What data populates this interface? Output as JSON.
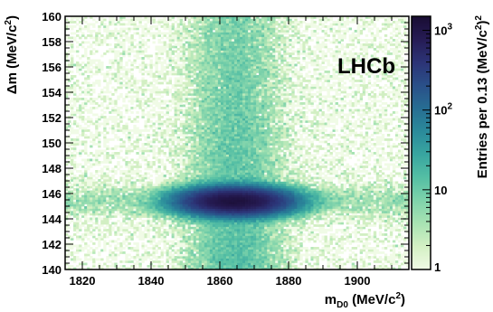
{
  "chart_data": {
    "type": "heatmap",
    "title": "",
    "x_axis": {
      "label_main": "m",
      "label_sub": "D0",
      "label_unit": " (MeV/c",
      "label_sup": "2",
      "label_close": ")",
      "range": [
        1815,
        1915
      ],
      "ticks": [
        1820,
        1840,
        1860,
        1880,
        1900
      ],
      "tick_labels": [
        "1820",
        "1840",
        "1860",
        "1880",
        "1900"
      ]
    },
    "y_axis": {
      "label_prefix": "Δm (MeV/c",
      "label_sup": "2",
      "label_close": ")",
      "range": [
        140,
        160
      ],
      "ticks": [
        140,
        142,
        144,
        146,
        148,
        150,
        152,
        154,
        156,
        158,
        160
      ],
      "tick_labels": [
        "140",
        "142",
        "144",
        "146",
        "148",
        "150",
        "152",
        "154",
        "156",
        "158",
        "160"
      ]
    },
    "z_axis": {
      "label_prefix": "Entries per 0.13 (MeV/c",
      "label_sup1": "2",
      "label_close": ")",
      "label_sup2": "2",
      "scale": "log",
      "range": [
        1,
        1500
      ],
      "ticks": [
        1,
        10,
        100,
        1000
      ],
      "tick_labels": [
        {
          "base": "1",
          "exp": ""
        },
        {
          "base": "10",
          "exp": ""
        },
        {
          "base": "10",
          "exp": "2"
        },
        {
          "base": "10",
          "exp": "3"
        }
      ]
    },
    "colors": [
      "#f0fbe6",
      "#d4f0c4",
      "#a9e3b3",
      "#7fd3ab",
      "#55bfa4",
      "#39a6a0",
      "#2b8b9b",
      "#276e93",
      "#2a5089",
      "#2c3477",
      "#261c55",
      "#1a0d33"
    ],
    "components": [
      {
        "name": "peak",
        "x_center": 1864.5,
        "x_sigma": 8,
        "y_center": 145.4,
        "y_sigma": 0.55,
        "peak_entries": 1200
      },
      {
        "name": "vertical-band",
        "x_center": 1864.5,
        "x_sigma": 7.5,
        "y_range": [
          140,
          160
        ],
        "entries_at_bottom": 14,
        "entries_at_top": 7
      },
      {
        "name": "horizontal-band",
        "y_center": 145.4,
        "y_sigma": 0.75,
        "x_range": [
          1815,
          1915
        ],
        "entries": 4
      },
      {
        "name": "flat-background",
        "entries": 0.8
      }
    ]
  },
  "labels": {
    "experiment": "LHCb"
  }
}
